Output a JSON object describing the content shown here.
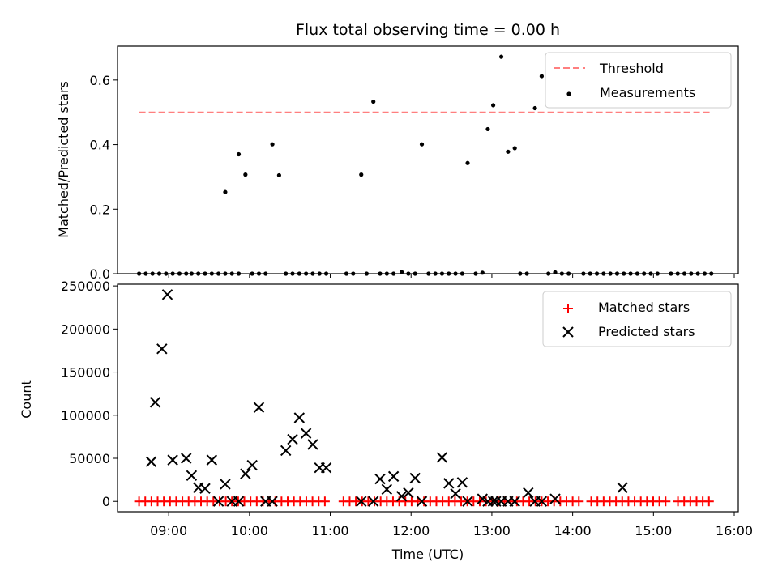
{
  "chart_data": [
    {
      "type": "scatter",
      "title": "Flux total observing time = 0.00 h",
      "xlabel": "",
      "ylabel": "Matched/Predicted stars",
      "xlim": [
        "08:22",
        "16:03"
      ],
      "ylim": [
        0,
        0.705
      ],
      "yticks": [
        0.0,
        0.2,
        0.4,
        0.6
      ],
      "ytick_labels": [
        "0.0",
        "0.2",
        "0.4",
        "0.6"
      ],
      "xticks": [
        "09:00",
        "10:00",
        "11:00",
        "12:00",
        "13:00",
        "14:00",
        "15:00",
        "16:00"
      ],
      "grid": false,
      "legend_position": "top-right",
      "threshold": {
        "name": "Threshold",
        "y": 0.5,
        "x_start": "08:38",
        "x_end": "15:42",
        "color": "#ff7f7f",
        "style": "dashed"
      },
      "series": [
        {
          "name": "Measurements",
          "marker": "dot",
          "color": "#000000",
          "points": [
            [
              "09:42",
              0.253
            ],
            [
              "09:52",
              0.37
            ],
            [
              "09:57",
              0.307
            ],
            [
              "10:17",
              0.401
            ],
            [
              "10:22",
              0.305
            ],
            [
              "11:23",
              0.307
            ],
            [
              "11:32",
              0.533
            ],
            [
              "12:08",
              0.401
            ],
            [
              "12:42",
              0.343
            ],
            [
              "12:57",
              0.448
            ],
            [
              "13:01",
              0.522
            ],
            [
              "13:07",
              0.672
            ],
            [
              "13:12",
              0.378
            ],
            [
              "13:17",
              0.389
            ],
            [
              "13:32",
              0.513
            ],
            [
              "13:37",
              0.612
            ],
            [
              "11:53",
              0.005
            ],
            [
              "13:47",
              0.004
            ],
            [
              "12:53",
              0.003
            ],
            [
              "08:38",
              0.0
            ],
            [
              "08:43",
              0.0
            ],
            [
              "08:48",
              0.0
            ],
            [
              "08:53",
              0.0
            ],
            [
              "08:58",
              0.0
            ],
            [
              "09:03",
              0.0
            ],
            [
              "09:08",
              0.0
            ],
            [
              "09:13",
              0.0
            ],
            [
              "09:17",
              0.0
            ],
            [
              "09:22",
              0.0
            ],
            [
              "09:27",
              0.0
            ],
            [
              "09:32",
              0.0
            ],
            [
              "09:37",
              0.0
            ],
            [
              "09:42",
              0.0
            ],
            [
              "09:47",
              0.0
            ],
            [
              "09:52",
              0.0
            ],
            [
              "10:02",
              0.0
            ],
            [
              "10:07",
              0.0
            ],
            [
              "10:12",
              0.0
            ],
            [
              "10:27",
              0.0
            ],
            [
              "10:32",
              0.0
            ],
            [
              "10:37",
              0.0
            ],
            [
              "10:42",
              0.0
            ],
            [
              "10:47",
              0.0
            ],
            [
              "10:52",
              0.0
            ],
            [
              "10:57",
              0.0
            ],
            [
              "11:12",
              0.0
            ],
            [
              "11:17",
              0.0
            ],
            [
              "11:27",
              0.0
            ],
            [
              "11:37",
              0.0
            ],
            [
              "11:42",
              0.0
            ],
            [
              "11:47",
              0.0
            ],
            [
              "11:58",
              0.0
            ],
            [
              "12:03",
              0.0
            ],
            [
              "12:13",
              0.0
            ],
            [
              "12:18",
              0.0
            ],
            [
              "12:23",
              0.0
            ],
            [
              "12:28",
              0.0
            ],
            [
              "12:33",
              0.0
            ],
            [
              "12:38",
              0.0
            ],
            [
              "12:48",
              0.0
            ],
            [
              "13:21",
              0.0
            ],
            [
              "13:26",
              0.0
            ],
            [
              "13:42",
              0.0
            ],
            [
              "13:52",
              0.0
            ],
            [
              "13:57",
              0.0
            ],
            [
              "14:08",
              0.0
            ],
            [
              "14:13",
              0.0
            ],
            [
              "14:18",
              0.0
            ],
            [
              "14:23",
              0.0
            ],
            [
              "14:28",
              0.0
            ],
            [
              "14:33",
              0.0
            ],
            [
              "14:38",
              0.0
            ],
            [
              "14:43",
              0.0
            ],
            [
              "14:48",
              0.0
            ],
            [
              "14:53",
              0.0
            ],
            [
              "14:58",
              0.0
            ],
            [
              "15:03",
              0.0
            ],
            [
              "15:13",
              0.0
            ],
            [
              "15:18",
              0.0
            ],
            [
              "15:23",
              0.0
            ],
            [
              "15:28",
              0.0
            ],
            [
              "15:33",
              0.0
            ],
            [
              "15:38",
              0.0
            ],
            [
              "15:43",
              0.0
            ]
          ]
        }
      ]
    },
    {
      "type": "scatter",
      "title": "",
      "xlabel": "Time (UTC)",
      "ylabel": "Count",
      "xlim": [
        "08:22",
        "16:03"
      ],
      "ylim": [
        -12000,
        252000
      ],
      "yticks": [
        0,
        50000,
        100000,
        150000,
        200000,
        250000
      ],
      "ytick_labels": [
        "0",
        "50000",
        "100000",
        "150000",
        "200000",
        "250000"
      ],
      "xticks": [
        "09:00",
        "10:00",
        "11:00",
        "12:00",
        "13:00",
        "14:00",
        "15:00",
        "16:00"
      ],
      "grid": false,
      "legend_position": "top-right",
      "series": [
        {
          "name": "Matched stars",
          "marker": "plus",
          "color": "#ff0000",
          "x_start": "08:38",
          "x_step_minutes": 4.6,
          "count": 93,
          "y": 0,
          "gaps": [
            [
              "10:58",
              "11:09"
            ],
            [
              "14:06",
              "14:10"
            ],
            [
              "15:10",
              "15:16"
            ]
          ]
        },
        {
          "name": "Predicted stars",
          "marker": "x",
          "color": "#000000",
          "points": [
            [
              "08:47",
              46000
            ],
            [
              "08:50",
              115000
            ],
            [
              "08:55",
              177000
            ],
            [
              "08:59",
              240000
            ],
            [
              "09:03",
              48000
            ],
            [
              "09:13",
              50000
            ],
            [
              "09:17",
              30000
            ],
            [
              "09:22",
              16000
            ],
            [
              "09:27",
              15000
            ],
            [
              "09:32",
              48000
            ],
            [
              "09:37",
              0
            ],
            [
              "09:42",
              20000
            ],
            [
              "09:47",
              0
            ],
            [
              "09:52",
              0
            ],
            [
              "09:57",
              32000
            ],
            [
              "10:02",
              42000
            ],
            [
              "10:07",
              109000
            ],
            [
              "10:12",
              0
            ],
            [
              "10:17",
              0
            ],
            [
              "10:27",
              59000
            ],
            [
              "10:32",
              72000
            ],
            [
              "10:37",
              97000
            ],
            [
              "10:42",
              79000
            ],
            [
              "10:47",
              66000
            ],
            [
              "10:52",
              39000
            ],
            [
              "10:57",
              39000
            ],
            [
              "11:23",
              0
            ],
            [
              "11:32",
              0
            ],
            [
              "11:37",
              26000
            ],
            [
              "11:42",
              14000
            ],
            [
              "11:47",
              29000
            ],
            [
              "11:53",
              6000
            ],
            [
              "11:58",
              10000
            ],
            [
              "12:03",
              27000
            ],
            [
              "12:08",
              0
            ],
            [
              "12:23",
              51000
            ],
            [
              "12:28",
              21000
            ],
            [
              "12:33",
              9000
            ],
            [
              "12:38",
              22000
            ],
            [
              "12:42",
              0
            ],
            [
              "12:53",
              3000
            ],
            [
              "12:57",
              0
            ],
            [
              "13:01",
              0
            ],
            [
              "13:03",
              0
            ],
            [
              "13:07",
              0
            ],
            [
              "13:12",
              0
            ],
            [
              "13:17",
              0
            ],
            [
              "13:27",
              10000
            ],
            [
              "13:32",
              0
            ],
            [
              "13:37",
              0
            ],
            [
              "13:47",
              3000
            ],
            [
              "14:37",
              16000
            ]
          ]
        }
      ]
    }
  ]
}
